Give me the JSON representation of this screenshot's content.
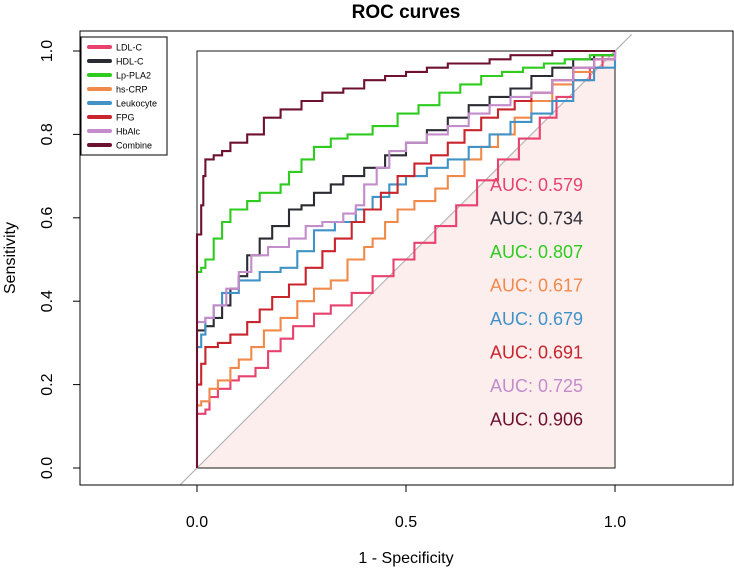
{
  "chart_data": {
    "type": "line",
    "title": "ROC curves",
    "xlabel": "1 - Specificity",
    "ylabel": "Sensitivity",
    "xlim": [
      0,
      1
    ],
    "ylim": [
      0,
      1
    ],
    "x_ticks": [
      "0.0",
      "0.5",
      "1.0"
    ],
    "y_ticks": [
      "0.0",
      "0.2",
      "0.4",
      "0.6",
      "0.8",
      "1.0"
    ],
    "legend_position": "top-left",
    "reference_line": "diagonal",
    "auc_prefix": "AUC: ",
    "series": [
      {
        "name": "LDL-C",
        "color": "#e8426e",
        "auc": "0.579",
        "points": [
          [
            0,
            0.12
          ],
          [
            0,
            0.13
          ],
          [
            0.02,
            0.14
          ],
          [
            0.03,
            0.17
          ],
          [
            0.05,
            0.19
          ],
          [
            0.08,
            0.21
          ],
          [
            0.1,
            0.22
          ],
          [
            0.14,
            0.24
          ],
          [
            0.17,
            0.28
          ],
          [
            0.2,
            0.31
          ],
          [
            0.23,
            0.34
          ],
          [
            0.28,
            0.37
          ],
          [
            0.32,
            0.39
          ],
          [
            0.37,
            0.42
          ],
          [
            0.42,
            0.46
          ],
          [
            0.47,
            0.5
          ],
          [
            0.52,
            0.54
          ],
          [
            0.57,
            0.58
          ],
          [
            0.62,
            0.63
          ],
          [
            0.67,
            0.69
          ],
          [
            0.72,
            0.74
          ],
          [
            0.77,
            0.79
          ],
          [
            0.82,
            0.84
          ],
          [
            0.86,
            0.89
          ],
          [
            0.9,
            0.93
          ],
          [
            0.94,
            0.96
          ],
          [
            0.97,
            0.99
          ],
          [
            1,
            1
          ]
        ]
      },
      {
        "name": "HDL-C",
        "color": "#2b2b33",
        "auc": "0.734",
        "points": [
          [
            0,
            0.33
          ],
          [
            0.02,
            0.34
          ],
          [
            0.04,
            0.36
          ],
          [
            0.06,
            0.39
          ],
          [
            0.08,
            0.43
          ],
          [
            0.1,
            0.46
          ],
          [
            0.12,
            0.51
          ],
          [
            0.15,
            0.55
          ],
          [
            0.18,
            0.58
          ],
          [
            0.22,
            0.62
          ],
          [
            0.25,
            0.63
          ],
          [
            0.28,
            0.66
          ],
          [
            0.32,
            0.68
          ],
          [
            0.35,
            0.7
          ],
          [
            0.4,
            0.72
          ],
          [
            0.45,
            0.75
          ],
          [
            0.5,
            0.78
          ],
          [
            0.55,
            0.81
          ],
          [
            0.6,
            0.84
          ],
          [
            0.65,
            0.87
          ],
          [
            0.7,
            0.89
          ],
          [
            0.75,
            0.91
          ],
          [
            0.8,
            0.94
          ],
          [
            0.85,
            0.96
          ],
          [
            0.9,
            0.98
          ],
          [
            0.95,
            0.99
          ],
          [
            1,
            1
          ]
        ]
      },
      {
        "name": "Lp-PLA2",
        "color": "#2ecc1f",
        "auc": "0.807",
        "points": [
          [
            0,
            0.47
          ],
          [
            0.01,
            0.48
          ],
          [
            0.02,
            0.5
          ],
          [
            0.04,
            0.55
          ],
          [
            0.06,
            0.59
          ],
          [
            0.08,
            0.62
          ],
          [
            0.12,
            0.64
          ],
          [
            0.15,
            0.66
          ],
          [
            0.2,
            0.68
          ],
          [
            0.22,
            0.71
          ],
          [
            0.25,
            0.74
          ],
          [
            0.28,
            0.77
          ],
          [
            0.32,
            0.79
          ],
          [
            0.36,
            0.8
          ],
          [
            0.42,
            0.82
          ],
          [
            0.48,
            0.85
          ],
          [
            0.53,
            0.87
          ],
          [
            0.58,
            0.9
          ],
          [
            0.63,
            0.92
          ],
          [
            0.68,
            0.94
          ],
          [
            0.73,
            0.95
          ],
          [
            0.78,
            0.96
          ],
          [
            0.83,
            0.97
          ],
          [
            0.88,
            0.98
          ],
          [
            0.94,
            0.99
          ],
          [
            1,
            1
          ]
        ]
      },
      {
        "name": "hs-CRP",
        "color": "#f08a4b",
        "auc": "0.617",
        "points": [
          [
            0,
            0.15
          ],
          [
            0.01,
            0.16
          ],
          [
            0.03,
            0.19
          ],
          [
            0.05,
            0.21
          ],
          [
            0.08,
            0.24
          ],
          [
            0.1,
            0.26
          ],
          [
            0.13,
            0.29
          ],
          [
            0.16,
            0.33
          ],
          [
            0.2,
            0.36
          ],
          [
            0.24,
            0.4
          ],
          [
            0.28,
            0.43
          ],
          [
            0.32,
            0.45
          ],
          [
            0.36,
            0.5
          ],
          [
            0.4,
            0.53
          ],
          [
            0.42,
            0.55
          ],
          [
            0.45,
            0.59
          ],
          [
            0.48,
            0.62
          ],
          [
            0.52,
            0.64
          ],
          [
            0.57,
            0.67
          ],
          [
            0.6,
            0.7
          ],
          [
            0.64,
            0.74
          ],
          [
            0.68,
            0.77
          ],
          [
            0.72,
            0.8
          ],
          [
            0.76,
            0.84
          ],
          [
            0.8,
            0.88
          ],
          [
            0.85,
            0.92
          ],
          [
            0.9,
            0.95
          ],
          [
            0.95,
            0.98
          ],
          [
            1,
            1
          ]
        ]
      },
      {
        "name": "Leukocyte",
        "color": "#4193c7",
        "auc": "0.679",
        "points": [
          [
            0,
            0.29
          ],
          [
            0.01,
            0.32
          ],
          [
            0.02,
            0.36
          ],
          [
            0.04,
            0.39
          ],
          [
            0.06,
            0.42
          ],
          [
            0.1,
            0.45
          ],
          [
            0.15,
            0.47
          ],
          [
            0.2,
            0.48
          ],
          [
            0.24,
            0.52
          ],
          [
            0.28,
            0.57
          ],
          [
            0.33,
            0.59
          ],
          [
            0.38,
            0.62
          ],
          [
            0.42,
            0.65
          ],
          [
            0.46,
            0.68
          ],
          [
            0.5,
            0.7
          ],
          [
            0.55,
            0.72
          ],
          [
            0.6,
            0.74
          ],
          [
            0.65,
            0.77
          ],
          [
            0.7,
            0.8
          ],
          [
            0.75,
            0.83
          ],
          [
            0.8,
            0.85
          ],
          [
            0.85,
            0.88
          ],
          [
            0.9,
            0.93
          ],
          [
            0.95,
            0.96
          ],
          [
            1,
            1
          ]
        ]
      },
      {
        "name": "FPG",
        "color": "#c8252d",
        "auc": "0.691",
        "points": [
          [
            0,
            0.2
          ],
          [
            0.01,
            0.25
          ],
          [
            0.02,
            0.29
          ],
          [
            0.05,
            0.3
          ],
          [
            0.08,
            0.32
          ],
          [
            0.12,
            0.35
          ],
          [
            0.15,
            0.38
          ],
          [
            0.18,
            0.41
          ],
          [
            0.22,
            0.44
          ],
          [
            0.26,
            0.48
          ],
          [
            0.3,
            0.52
          ],
          [
            0.33,
            0.55
          ],
          [
            0.37,
            0.59
          ],
          [
            0.4,
            0.62
          ],
          [
            0.44,
            0.66
          ],
          [
            0.48,
            0.7
          ],
          [
            0.52,
            0.73
          ],
          [
            0.56,
            0.75
          ],
          [
            0.6,
            0.78
          ],
          [
            0.64,
            0.81
          ],
          [
            0.68,
            0.84
          ],
          [
            0.72,
            0.86
          ],
          [
            0.76,
            0.88
          ],
          [
            0.8,
            0.9
          ],
          [
            0.85,
            0.93
          ],
          [
            0.9,
            0.96
          ],
          [
            0.95,
            0.98
          ],
          [
            1,
            1
          ]
        ]
      },
      {
        "name": "HbAlc",
        "color": "#c38ccb",
        "auc": "0.725",
        "points": [
          [
            0,
            0.35
          ],
          [
            0.02,
            0.36
          ],
          [
            0.04,
            0.39
          ],
          [
            0.07,
            0.43
          ],
          [
            0.1,
            0.47
          ],
          [
            0.13,
            0.51
          ],
          [
            0.17,
            0.53
          ],
          [
            0.22,
            0.55
          ],
          [
            0.26,
            0.58
          ],
          [
            0.3,
            0.59
          ],
          [
            0.35,
            0.61
          ],
          [
            0.38,
            0.63
          ],
          [
            0.4,
            0.68
          ],
          [
            0.43,
            0.72
          ],
          [
            0.46,
            0.76
          ],
          [
            0.5,
            0.78
          ],
          [
            0.55,
            0.8
          ],
          [
            0.6,
            0.82
          ],
          [
            0.65,
            0.85
          ],
          [
            0.7,
            0.87
          ],
          [
            0.75,
            0.89
          ],
          [
            0.8,
            0.9
          ],
          [
            0.85,
            0.93
          ],
          [
            0.9,
            0.96
          ],
          [
            0.95,
            0.98
          ],
          [
            1,
            1
          ]
        ]
      },
      {
        "name": "Combine",
        "color": "#6e1030",
        "auc": "0.906",
        "points": [
          [
            0,
            0
          ],
          [
            0,
            0.56
          ],
          [
            0.01,
            0.63
          ],
          [
            0.015,
            0.7
          ],
          [
            0.02,
            0.74
          ],
          [
            0.04,
            0.75
          ],
          [
            0.06,
            0.76
          ],
          [
            0.08,
            0.78
          ],
          [
            0.12,
            0.8
          ],
          [
            0.16,
            0.84
          ],
          [
            0.2,
            0.86
          ],
          [
            0.25,
            0.88
          ],
          [
            0.3,
            0.9
          ],
          [
            0.35,
            0.91
          ],
          [
            0.4,
            0.93
          ],
          [
            0.45,
            0.94
          ],
          [
            0.5,
            0.95
          ],
          [
            0.55,
            0.96
          ],
          [
            0.6,
            0.97
          ],
          [
            0.65,
            0.97
          ],
          [
            0.7,
            0.98
          ],
          [
            0.75,
            0.99
          ],
          [
            0.8,
            0.99
          ],
          [
            0.85,
            1
          ],
          [
            0.9,
            1
          ],
          [
            1,
            1
          ]
        ]
      }
    ]
  }
}
